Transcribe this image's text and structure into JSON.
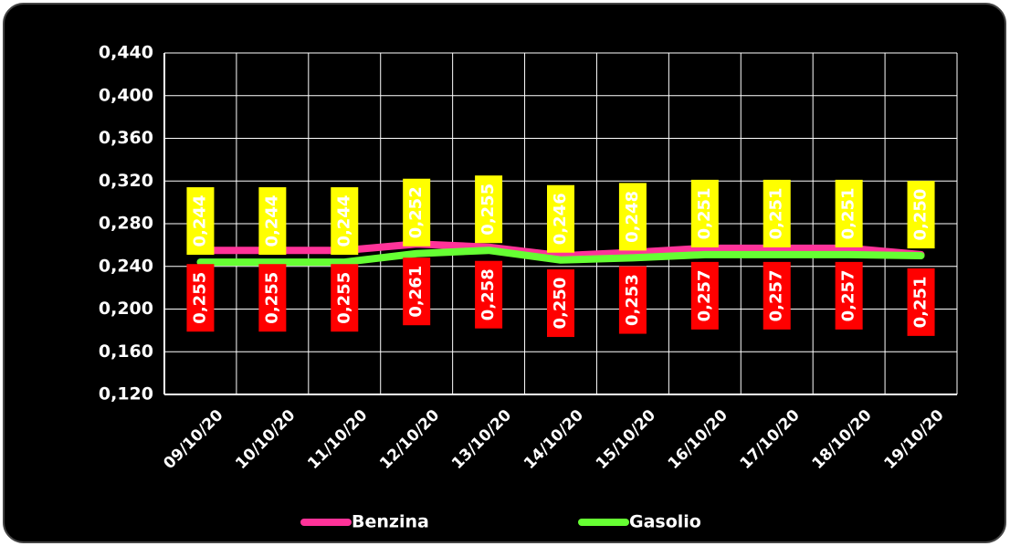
{
  "chart_data": {
    "type": "line",
    "categories": [
      "09/10/20",
      "10/10/20",
      "11/10/20",
      "12/10/20",
      "13/10/20",
      "14/10/20",
      "15/10/20",
      "16/10/20",
      "17/10/20",
      "18/10/20",
      "19/10/20"
    ],
    "series": [
      {
        "name": "Benzina",
        "color": "#ff3399",
        "label_color": "#ff0000",
        "values": [
          0.255,
          0.255,
          0.255,
          0.261,
          0.258,
          0.25,
          0.253,
          0.257,
          0.257,
          0.257,
          0.251
        ],
        "value_labels": [
          "0,255",
          "0,255",
          "0,255",
          "0,261",
          "0,258",
          "0,250",
          "0,253",
          "0,257",
          "0,257",
          "0,257",
          "0,251"
        ]
      },
      {
        "name": "Gasolio",
        "color": "#66ff33",
        "label_color": "#ffff00",
        "values": [
          0.244,
          0.244,
          0.244,
          0.252,
          0.255,
          0.246,
          0.248,
          0.251,
          0.251,
          0.251,
          0.25
        ],
        "value_labels": [
          "0,244",
          "0,244",
          "0,244",
          "0,252",
          "0,255",
          "0,246",
          "0,248",
          "0,251",
          "0,251",
          "0,251",
          "0,250"
        ]
      }
    ],
    "ylim": [
      0.12,
      0.44
    ],
    "yticks": [
      {
        "value": 0.12,
        "label": "0,120"
      },
      {
        "value": 0.16,
        "label": "0,160"
      },
      {
        "value": 0.2,
        "label": "0,200"
      },
      {
        "value": 0.24,
        "label": "0,240"
      },
      {
        "value": 0.28,
        "label": "0,280"
      },
      {
        "value": 0.32,
        "label": "0,320"
      },
      {
        "value": 0.36,
        "label": "0,360"
      },
      {
        "value": 0.4,
        "label": "0,400"
      },
      {
        "value": 0.44,
        "label": "0,440"
      }
    ],
    "grid": true,
    "legend": "bottom"
  }
}
